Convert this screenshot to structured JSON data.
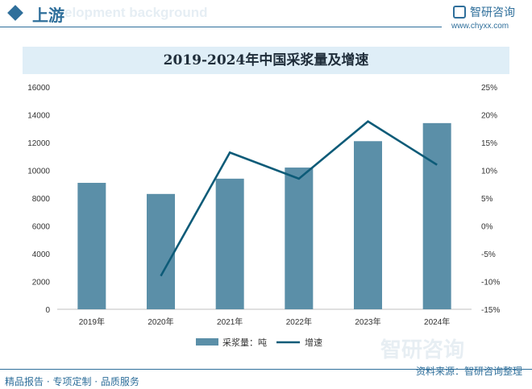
{
  "header": {
    "section": "上游",
    "watermark": "elopment background",
    "brand_name": "智研咨询",
    "brand_url": "www.chyxx.com"
  },
  "chart_data": {
    "type": "bar",
    "title": "2019-2024年中国采浆量及增速",
    "categories": [
      "2019年",
      "2020年",
      "2021年",
      "2022年",
      "2023年",
      "2024年"
    ],
    "series": [
      {
        "name": "采浆量：吨",
        "kind": "bar",
        "axis": "left",
        "values": [
          9100,
          8300,
          9400,
          10200,
          12100,
          13400
        ],
        "color": "#5b8fa8"
      },
      {
        "name": "增速",
        "kind": "line",
        "axis": "right",
        "values": [
          null,
          -9,
          13.2,
          8.5,
          18.8,
          11
        ],
        "color": "#0d5b78"
      }
    ],
    "left_axis": {
      "min": 0,
      "max": 16000,
      "ticks": [
        "0",
        "2000",
        "4000",
        "6000",
        "8000",
        "10000",
        "12000",
        "14000",
        "16000"
      ]
    },
    "right_axis": {
      "min": -15,
      "max": 25,
      "ticks": [
        "-15%",
        "-10%",
        "-5%",
        "0%",
        "5%",
        "10%",
        "15%",
        "20%",
        "25%"
      ]
    },
    "grid": false,
    "legend": "bottom"
  },
  "footer": {
    "left": "精品报告 · 专项定制 · 品质服务",
    "right": "资料来源：智研咨询整理",
    "watermark": "智研咨询"
  }
}
